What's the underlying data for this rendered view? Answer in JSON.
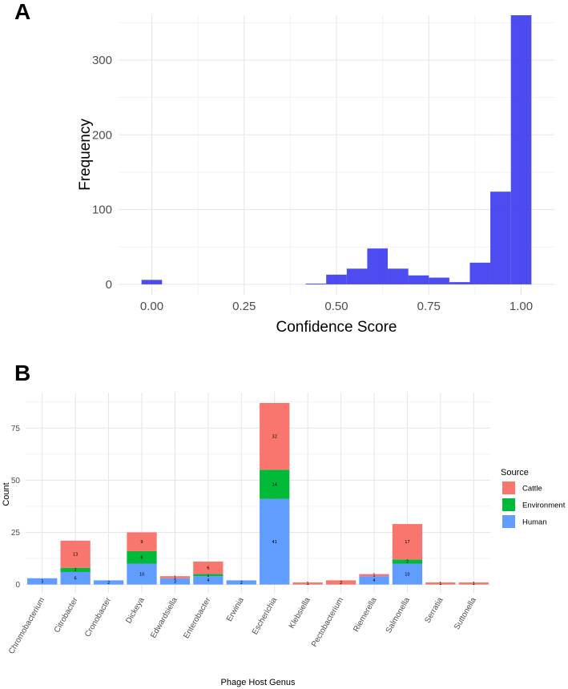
{
  "chart_data": [
    {
      "type": "bar",
      "panel": "A",
      "subtype": "histogram",
      "xlabel": "Confidence Score",
      "ylabel": "Frequency",
      "xlim": [
        -0.09,
        1.09
      ],
      "ylim": [
        -14,
        360
      ],
      "x_ticks": [
        0.0,
        0.25,
        0.5,
        0.75,
        1.0
      ],
      "x_tick_labels": [
        "0.00",
        "0.25",
        "0.50",
        "0.75",
        "1.00"
      ],
      "y_ticks": [
        0,
        100,
        200,
        300
      ],
      "y_tick_labels": [
        "0",
        "100",
        "200",
        "300"
      ],
      "bin_width": 0.0556,
      "bin_centers": [
        0.0,
        0.0556,
        0.1111,
        0.1667,
        0.2222,
        0.2778,
        0.3333,
        0.3889,
        0.4444,
        0.5,
        0.5556,
        0.6111,
        0.6667,
        0.7222,
        0.7778,
        0.8333,
        0.8889,
        0.9444,
        1.0
      ],
      "values": [
        6,
        0,
        0,
        0,
        0,
        0,
        0,
        0,
        1,
        13,
        21,
        48,
        21,
        12,
        9,
        3,
        29,
        124,
        360
      ],
      "color": "#3333ee"
    },
    {
      "type": "bar",
      "panel": "B",
      "subtype": "stacked",
      "xlabel": "Phage Host Genus",
      "ylabel": "Count",
      "ylim": [
        -4,
        92
      ],
      "y_ticks": [
        0,
        25,
        50,
        75
      ],
      "y_tick_labels": [
        "0",
        "25",
        "50",
        "75"
      ],
      "categories": [
        "Chromobacterium",
        "Citrobacter",
        "Cronobacter",
        "Dickeya",
        "Edwardsiella",
        "Enterobacter",
        "Erwinia",
        "Escherichia",
        "Klebsiella",
        "Pectobacterium",
        "Riemerella",
        "Salmonella",
        "Serratia",
        "Suttonella"
      ],
      "series": [
        {
          "name": "Human",
          "color": "#619cff",
          "values": [
            3,
            6,
            2,
            10,
            3,
            4,
            2,
            41,
            0,
            0,
            4,
            10,
            0,
            0
          ]
        },
        {
          "name": "Environment",
          "color": "#00ba38",
          "values": [
            0,
            2,
            0,
            6,
            0,
            1,
            0,
            14,
            0,
            0,
            0,
            2,
            0,
            0
          ]
        },
        {
          "name": "Cattle",
          "color": "#f8766d",
          "values": [
            0,
            13,
            0,
            9,
            1,
            6,
            0,
            32,
            1,
            2,
            1,
            17,
            1,
            1
          ]
        }
      ],
      "legend": {
        "title": "Source",
        "entries": [
          "Cattle",
          "Environment",
          "Human"
        ],
        "position": "right"
      }
    }
  ],
  "labels": {
    "panel_a": "A",
    "panel_b": "B"
  }
}
